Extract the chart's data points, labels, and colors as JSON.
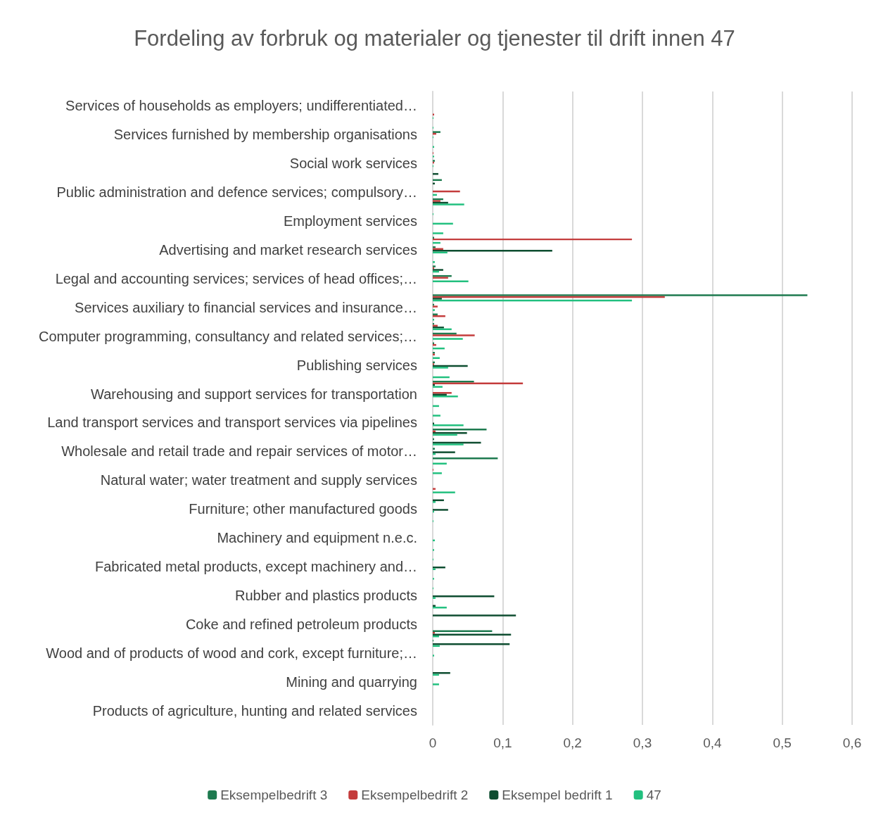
{
  "chart_data": {
    "type": "bar",
    "orientation": "horizontal",
    "title": "Fordeling av forbruk og materialer og tjenester til drift innen 47",
    "categories": [
      null,
      "Services of households as employers; undifferentiated…",
      null,
      null,
      "Services furnished by membership organisations",
      null,
      null,
      "Social work services",
      null,
      null,
      "Public administration and defence services; compulsory…",
      null,
      null,
      "Employment services",
      null,
      null,
      "Advertising and market research services",
      null,
      null,
      "Legal and accounting services; services of head offices;…",
      null,
      null,
      "Services auxiliary to financial services and insurance…",
      null,
      null,
      "Computer programming, consultancy and related services;…",
      null,
      null,
      "Publishing services",
      null,
      null,
      "Warehousing and support services for transportation",
      null,
      null,
      "Land transport services and transport services via pipelines",
      null,
      null,
      "Wholesale and retail trade and repair services of motor…",
      null,
      null,
      "Natural water; water treatment and supply services",
      null,
      null,
      "Furniture; other manufactured goods",
      null,
      null,
      "Machinery and equipment n.e.c.",
      null,
      null,
      "Fabricated metal products, except machinery and…",
      null,
      null,
      "Rubber and plastics products",
      null,
      null,
      "Coke and refined petroleum products",
      null,
      null,
      "Wood and of products of wood and cork, except furniture;…",
      null,
      null,
      "Mining and quarrying",
      null,
      null,
      "Products of agriculture, hunting and related services",
      null
    ],
    "series": [
      {
        "name": "Eksempelbedrift 3",
        "color": "#1e7a4f",
        "values": [
          0,
          0,
          0,
          0,
          0.011,
          0,
          0,
          0.003,
          0,
          0.013,
          0,
          0.015,
          0,
          0,
          0,
          0.002,
          0.004,
          0,
          0.004,
          0.027,
          0,
          0.536,
          0.002,
          0.007,
          0.002,
          0.034,
          0.002,
          0.003,
          0.003,
          0,
          0.059,
          0,
          0,
          0,
          0,
          0.077,
          0.002,
          0.003,
          0.093,
          0,
          0,
          0,
          0,
          0,
          0,
          0,
          0,
          0,
          0,
          0,
          0,
          0,
          0,
          0,
          0,
          0,
          0.085,
          0.001,
          0,
          0,
          0,
          0,
          0,
          0,
          0,
          0
        ]
      },
      {
        "name": "Eksempelbedrift 2",
        "color": "#c43c3c",
        "values": [
          0,
          0,
          0.002,
          0,
          0.005,
          0,
          0.001,
          0.002,
          0,
          0,
          0.039,
          0.011,
          0,
          0,
          0,
          0.285,
          0.015,
          0,
          0.002,
          0.022,
          0,
          0.332,
          0.007,
          0.018,
          0.007,
          0.06,
          0.005,
          0.003,
          0.002,
          0,
          0.129,
          0.027,
          0,
          0,
          0,
          0.004,
          0,
          0,
          0,
          0.001,
          0,
          0.004,
          0,
          0,
          0,
          0,
          0,
          0,
          0,
          0,
          0,
          0,
          0,
          0,
          0,
          0,
          0.003,
          0,
          0,
          0,
          0,
          0,
          0,
          0,
          0,
          0
        ]
      },
      {
        "name": "Eksempel bedrift 1",
        "color": "#0e4d30",
        "values": [
          0,
          0,
          0,
          0,
          0,
          0,
          0,
          0,
          0.008,
          0.003,
          0,
          0.022,
          0,
          0,
          0,
          0,
          0.171,
          0,
          0.015,
          0,
          0,
          0.013,
          0,
          0,
          0.016,
          0,
          0,
          0,
          0.05,
          0,
          0.003,
          0.02,
          0,
          0,
          0.002,
          0.049,
          0.069,
          0.032,
          0,
          0,
          0,
          0,
          0.016,
          0.022,
          0,
          0,
          0,
          0,
          0,
          0.018,
          0,
          0,
          0.088,
          0.004,
          0.119,
          0,
          0.112,
          0.11,
          0,
          0,
          0.025,
          0,
          0,
          0,
          0,
          0
        ]
      },
      {
        "name": "47",
        "color": "#22c07f",
        "values": [
          0,
          0,
          0.001,
          0.001,
          0.001,
          0.002,
          0.002,
          0.001,
          0,
          0,
          0.006,
          0.045,
          0.001,
          0.029,
          0.015,
          0.011,
          0.021,
          0.003,
          0.009,
          0.051,
          0,
          0.285,
          0.003,
          0.002,
          0.027,
          0.043,
          0.017,
          0.01,
          0.022,
          0.024,
          0.014,
          0.036,
          0.009,
          0.011,
          0.044,
          0.035,
          0.044,
          0.004,
          0.02,
          0.013,
          0,
          0.032,
          0.004,
          0.002,
          0.001,
          0,
          0.003,
          0.002,
          0.001,
          0.004,
          0.002,
          0.001,
          0.004,
          0.02,
          0,
          0,
          0.009,
          0.01,
          0.002,
          0,
          0.009,
          0.009,
          0,
          0,
          0,
          0
        ]
      }
    ],
    "xlim": [
      0,
      0.6
    ],
    "xticks": [
      0,
      {
        "value": 0.1,
        "label": "0,1"
      },
      {
        "value": 0.2,
        "label": "0,2"
      },
      {
        "value": 0.3,
        "label": "0,3"
      },
      {
        "value": 0.4,
        "label": "0,4"
      },
      {
        "value": 0.5,
        "label": "0,5"
      },
      {
        "value": 0.6,
        "label": "0,6"
      }
    ],
    "grid": "x",
    "legend": "bottom"
  }
}
